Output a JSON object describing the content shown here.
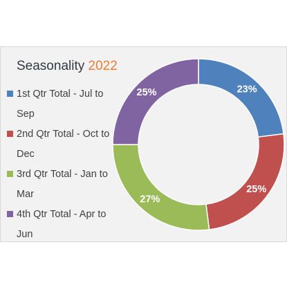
{
  "chart_data": {
    "type": "pie",
    "variant": "donut",
    "title": "Seasonality",
    "title_year": "2022",
    "legend_position": "left",
    "categories": [
      "1st Qtr Total - Jul to Sep",
      "2nd Qtr Total - Oct to Dec",
      "3rd Qtr Total - Jan to Mar",
      "4th Qtr Total - Apr to Jun"
    ],
    "values": [
      23,
      25,
      27,
      25
    ],
    "data_labels": [
      "23%",
      "25%",
      "27%",
      "25%"
    ],
    "colors": [
      "#4f81bd",
      "#c0504d",
      "#9bbb59",
      "#8064a2"
    ]
  }
}
